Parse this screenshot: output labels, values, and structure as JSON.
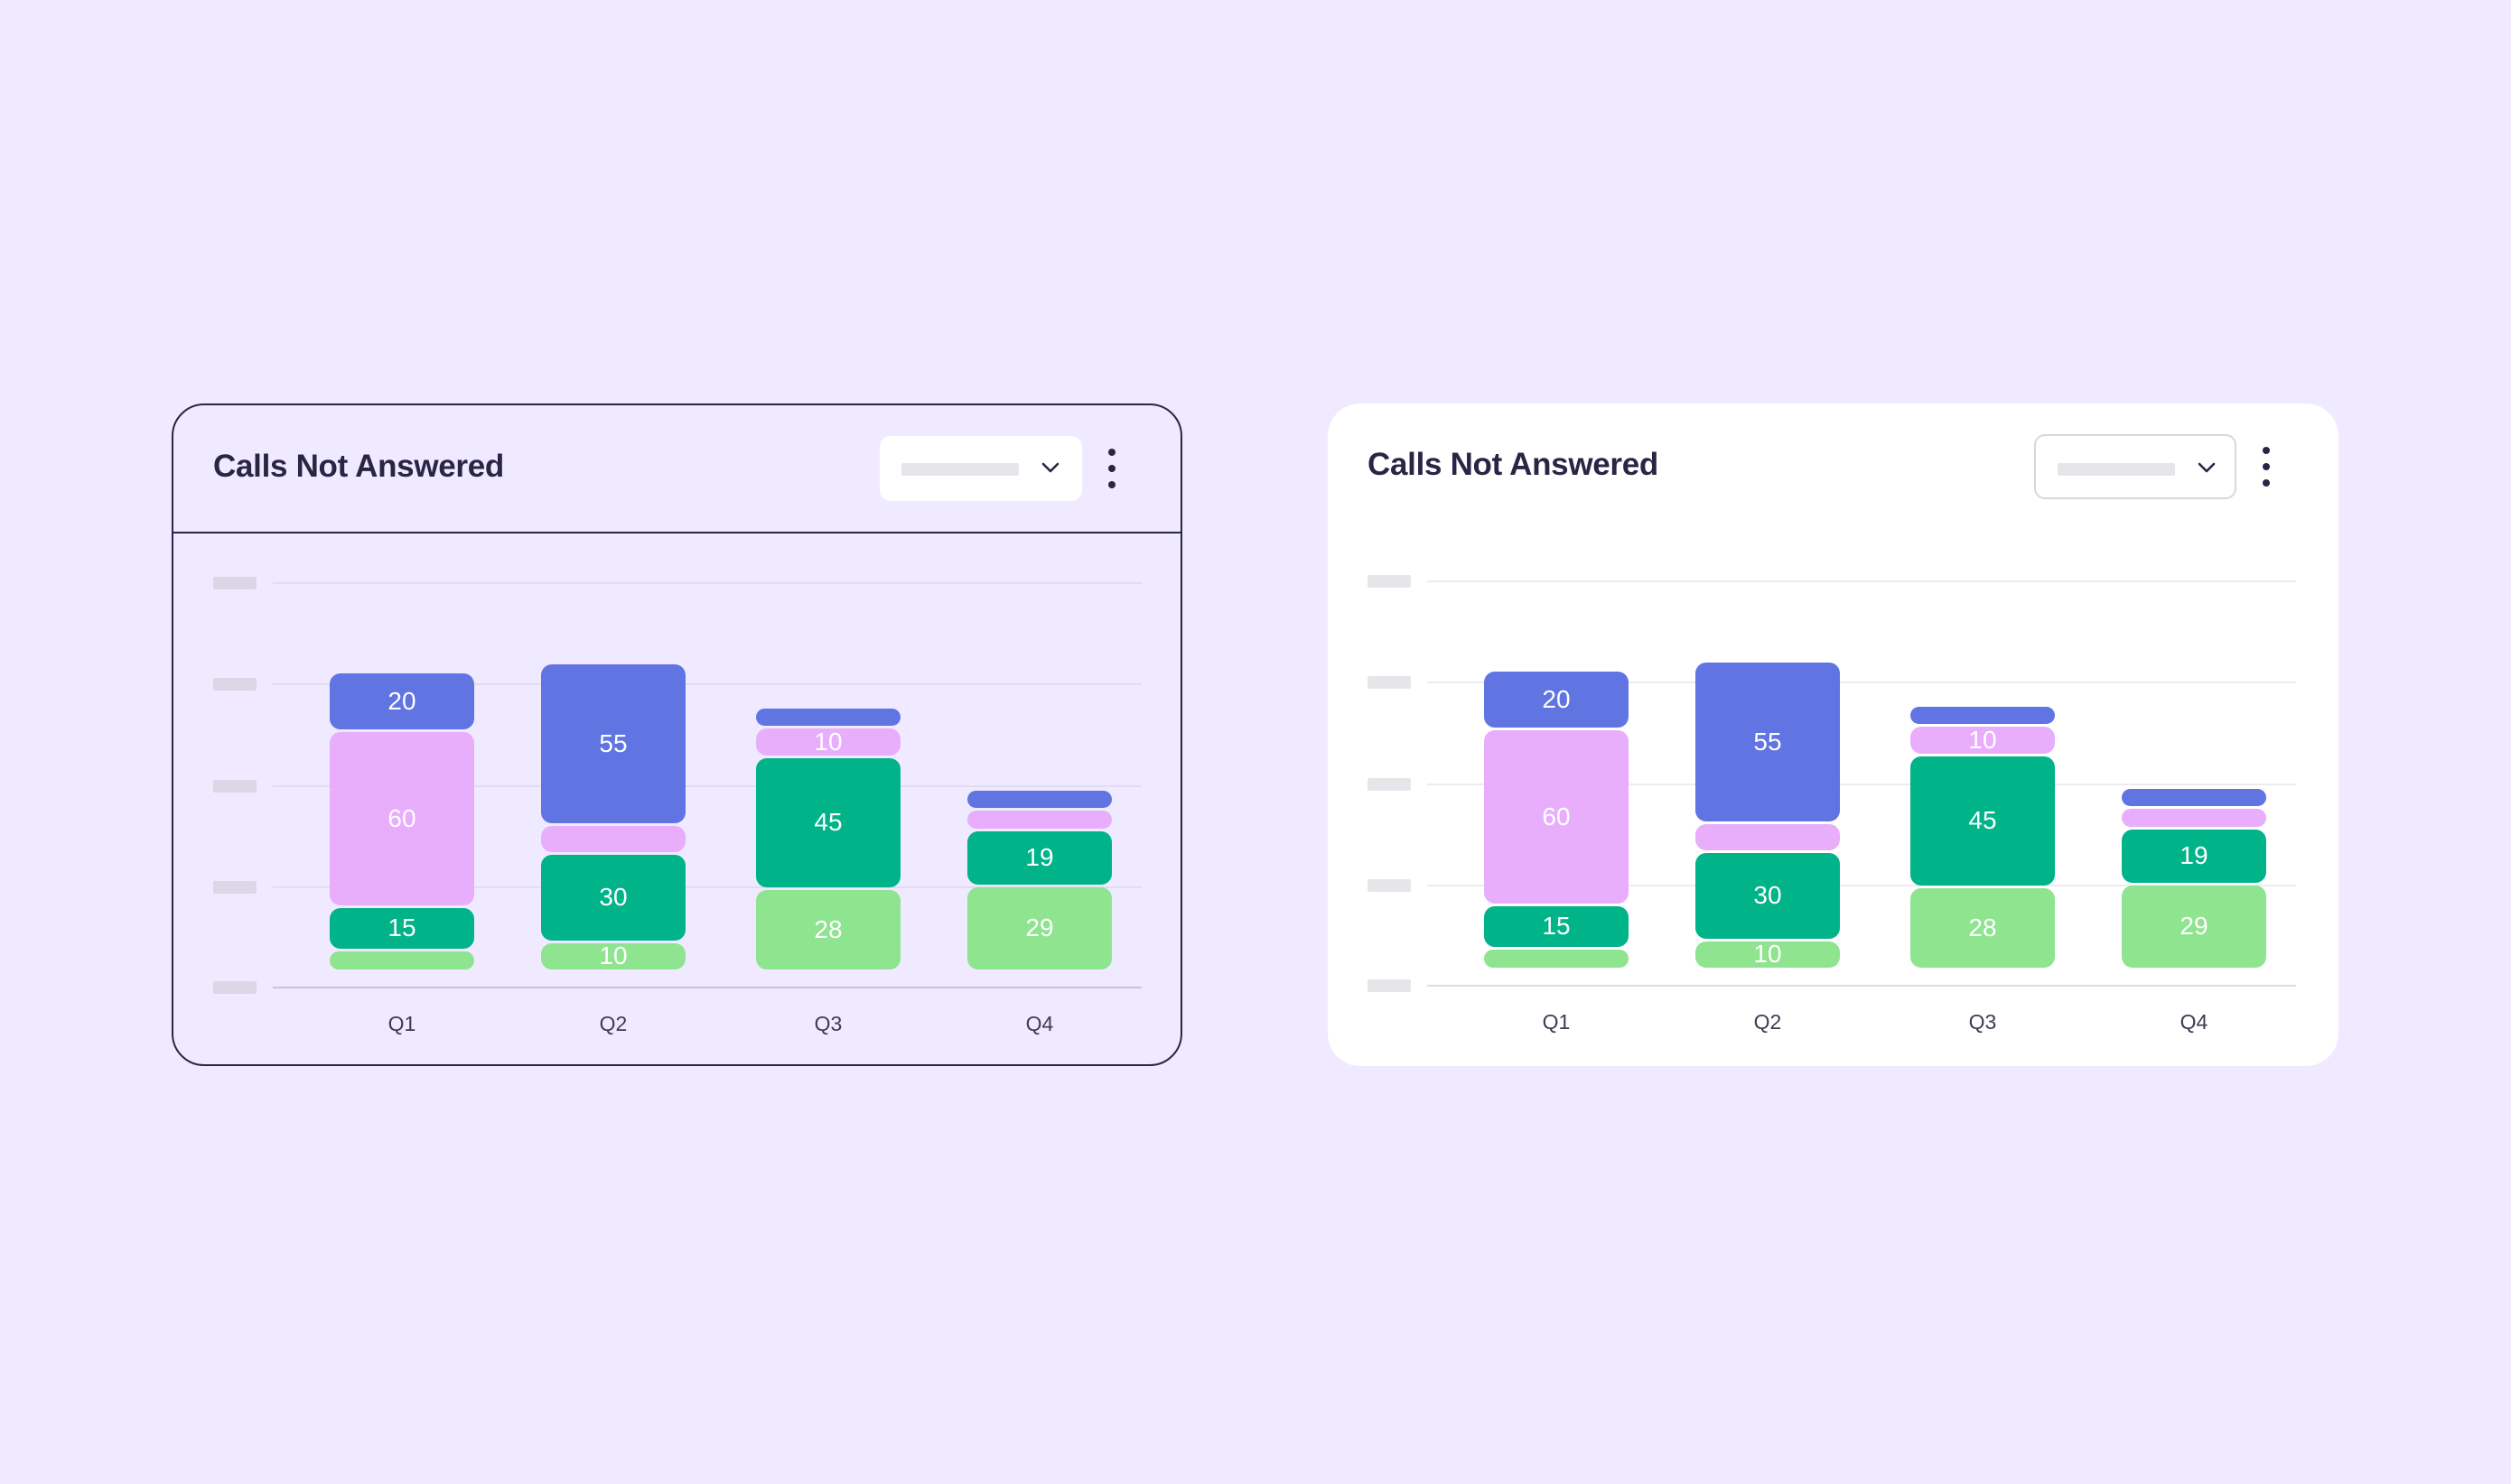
{
  "colors": {
    "background": "#efeaff",
    "blue": "#6074e2",
    "pink": "#e8aefc",
    "teal": "#00b388",
    "green": "#8ee48f",
    "text": "#2a2545"
  },
  "cards": [
    {
      "variant": "outlined",
      "title": "Calls Not Answered",
      "dropdown_icon": "chevron-down-icon",
      "menu_icon": "kebab-icon"
    },
    {
      "variant": "filled",
      "title": "Calls Not Answered",
      "dropdown_icon": "chevron-down-icon",
      "menu_icon": "kebab-icon"
    }
  ],
  "chart_data": [
    {
      "type": "bar",
      "stacked": true,
      "categories": [
        "Q1",
        "Q2",
        "Q3",
        "Q4"
      ],
      "series": [
        {
          "color": "#8ee48f",
          "values": [
            7,
            10,
            28,
            29
          ],
          "labels": [
            "",
            "10",
            "28",
            "29"
          ]
        },
        {
          "color": "#00b388",
          "values": [
            15,
            30,
            45,
            19
          ],
          "labels": [
            "15",
            "30",
            "45",
            "19"
          ]
        },
        {
          "color": "#e8aefc",
          "values": [
            60,
            10,
            10,
            7
          ],
          "labels": [
            "60",
            "",
            "10",
            ""
          ]
        },
        {
          "color": "#6074e2",
          "values": [
            20,
            55,
            7,
            7
          ],
          "labels": [
            "20",
            "55",
            "",
            ""
          ]
        }
      ],
      "grid": true,
      "y_tick_labels": "placeholder"
    },
    {
      "type": "bar",
      "stacked": true,
      "categories": [
        "Q1",
        "Q2",
        "Q3",
        "Q4"
      ],
      "series": [
        {
          "color": "#8ee48f",
          "values": [
            7,
            10,
            28,
            29
          ],
          "labels": [
            "",
            "10",
            "28",
            "29"
          ]
        },
        {
          "color": "#00b388",
          "values": [
            15,
            30,
            45,
            19
          ],
          "labels": [
            "15",
            "30",
            "45",
            "19"
          ]
        },
        {
          "color": "#e8aefc",
          "values": [
            60,
            10,
            10,
            7
          ],
          "labels": [
            "60",
            "",
            "10",
            ""
          ]
        },
        {
          "color": "#6074e2",
          "values": [
            20,
            55,
            7,
            7
          ],
          "labels": [
            "20",
            "55",
            "",
            ""
          ]
        }
      ],
      "grid": true,
      "y_tick_labels": "placeholder"
    }
  ]
}
